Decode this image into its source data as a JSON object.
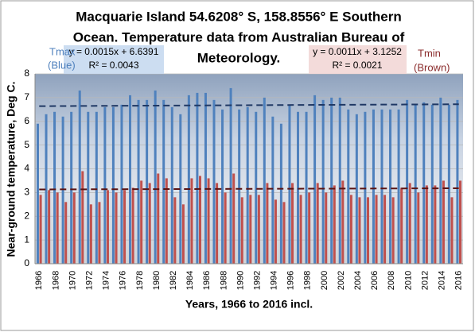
{
  "chart_data": {
    "type": "bar",
    "title": [
      "Macquarie Island 54.6208° S, 158.8556° E Southern",
      "Ocean. Temperature data from Australian Bureau of",
      "Meteorology."
    ],
    "x_label": "Years, 1966 to 2016 incl.",
    "y_label": "Near-ground temperature, Deg C.",
    "categories": [
      "1966",
      null,
      "1968",
      null,
      "1970",
      null,
      "1972",
      null,
      "1974",
      null,
      "1976",
      null,
      "1978",
      null,
      "1980",
      null,
      "1982",
      null,
      "1984",
      null,
      "1986",
      null,
      "1988",
      null,
      "1990",
      null,
      "1992",
      null,
      "1994",
      null,
      "1996",
      null,
      "1998",
      null,
      "2000",
      null,
      "2002",
      null,
      "2004",
      null,
      "2006",
      null,
      "2008",
      null,
      "2010",
      null,
      "2012",
      null,
      "2014",
      null,
      "2016"
    ],
    "series": [
      {
        "name": "Tmax",
        "color_label": "(Blue)",
        "color": "#4f81bd",
        "equation": "y = 0.0015x + 6.6391",
        "r2": "R² = 0.0043",
        "trend_values": [
          6.64,
          6.72
        ],
        "values": [
          5.9,
          6.3,
          6.4,
          6.2,
          6.4,
          7.3,
          6.4,
          6.4,
          6.6,
          6.6,
          6.7,
          7.1,
          6.9,
          6.9,
          7.3,
          6.9,
          6.6,
          6.3,
          7.1,
          7.2,
          7.2,
          6.9,
          6.5,
          7.4,
          6.5,
          6.6,
          6.4,
          7.0,
          6.2,
          5.9,
          6.7,
          6.4,
          6.4,
          7.1,
          6.9,
          7.0,
          7.0,
          6.5,
          6.3,
          6.4,
          6.5,
          6.5,
          6.5,
          6.5,
          6.9,
          6.7,
          6.8,
          6.7,
          7.0,
          6.7,
          6.9
        ]
      },
      {
        "name": "Tmin",
        "color_label": "(Brown)",
        "color": "#c0504d",
        "equation": "y = 0.0011x + 3.1252",
        "r2": "R² = 0.0021",
        "trend_values": [
          3.13,
          3.18
        ],
        "values": [
          2.9,
          3.1,
          3.0,
          2.6,
          3.0,
          3.9,
          2.5,
          2.6,
          3.1,
          3.0,
          3.1,
          3.2,
          3.5,
          3.4,
          3.8,
          3.6,
          2.8,
          2.5,
          3.6,
          3.7,
          3.6,
          3.4,
          3.0,
          3.8,
          2.8,
          2.9,
          2.9,
          3.4,
          2.7,
          2.6,
          3.4,
          2.9,
          3.0,
          3.4,
          3.0,
          3.3,
          3.5,
          2.9,
          2.8,
          2.8,
          2.9,
          2.9,
          2.8,
          3.2,
          3.4,
          3.0,
          3.3,
          3.3,
          3.5,
          2.8,
          3.5
        ]
      }
    ],
    "ylim": [
      0,
      8
    ],
    "yticks": [
      0,
      1,
      2,
      3,
      4,
      5,
      6,
      7,
      8
    ],
    "grid": true
  }
}
